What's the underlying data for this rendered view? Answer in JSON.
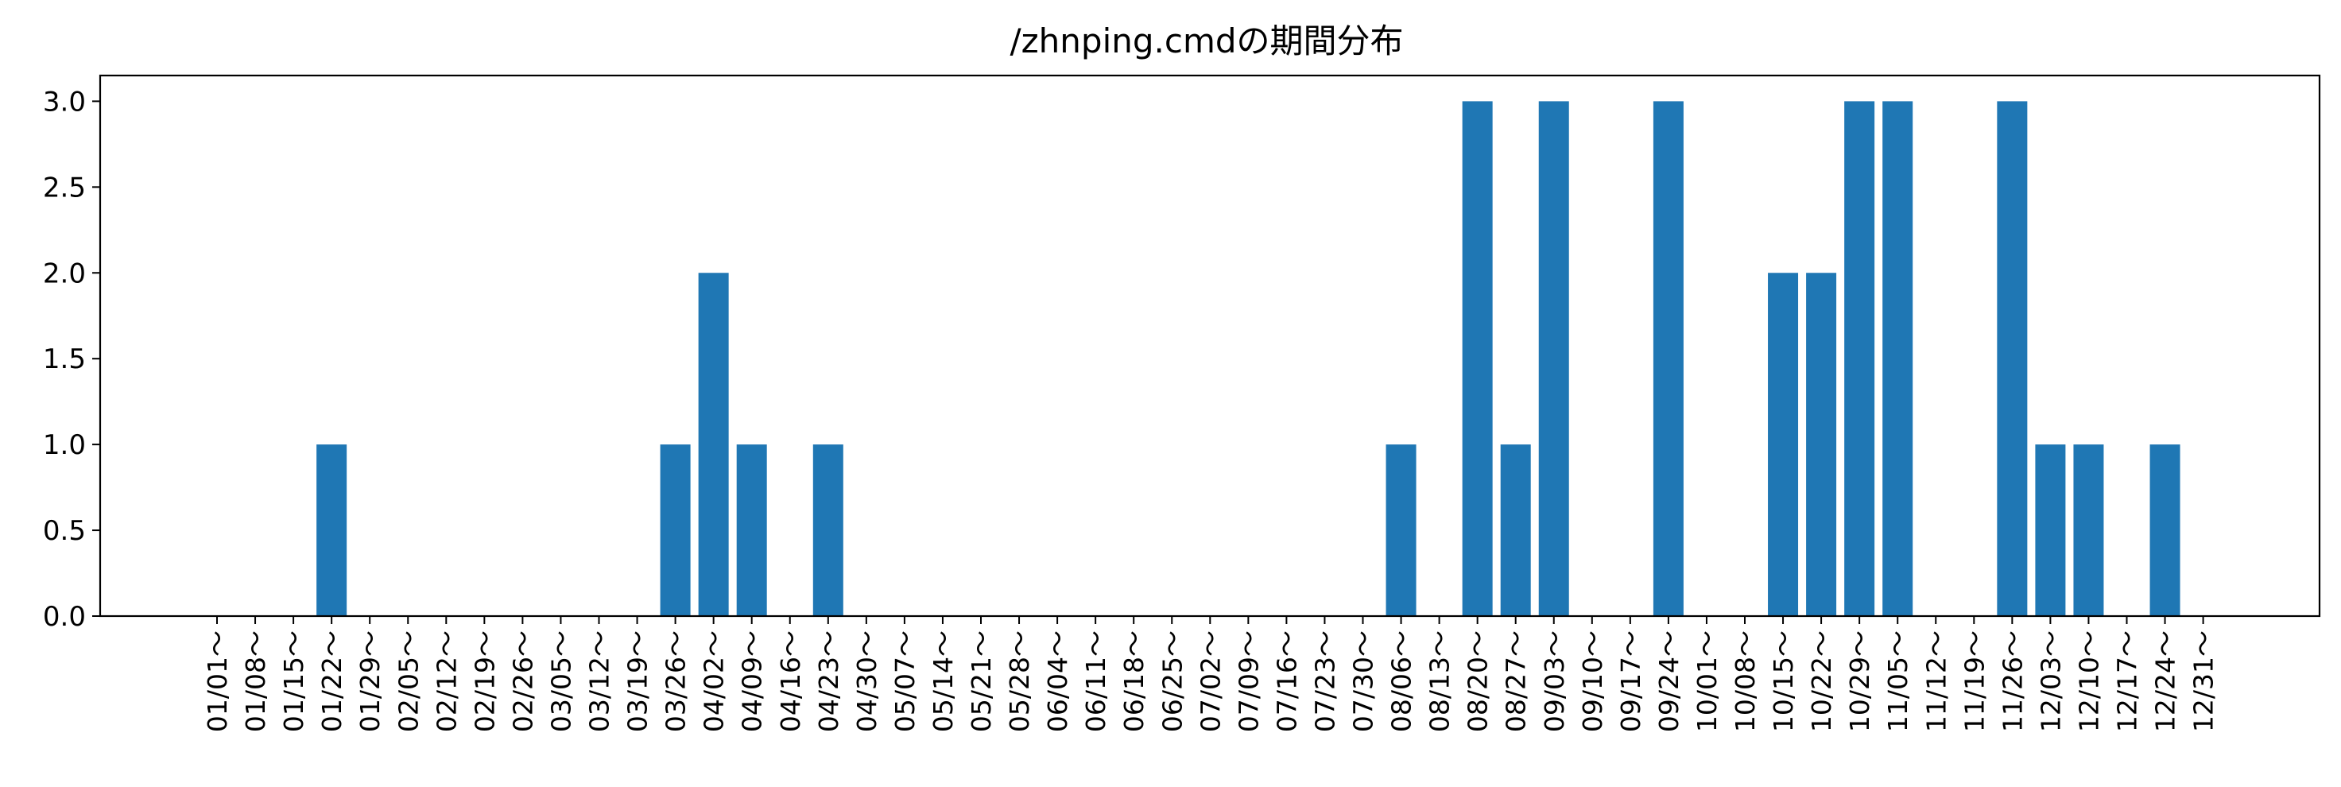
{
  "chart_data": {
    "type": "bar",
    "title": "/zhnping.cmdの期間分布",
    "xlabel": "",
    "ylabel": "",
    "ylim": [
      0,
      3.15
    ],
    "yticks": [
      "0.0",
      "0.5",
      "1.0",
      "1.5",
      "2.0",
      "2.5",
      "3.0"
    ],
    "grid": false,
    "bar_color": "#1f77b4",
    "categories": [
      "01/01～",
      "01/08～",
      "01/15～",
      "01/22～",
      "01/29～",
      "02/05～",
      "02/12～",
      "02/19～",
      "02/26～",
      "03/05～",
      "03/12～",
      "03/19～",
      "03/26～",
      "04/02～",
      "04/09～",
      "04/16～",
      "04/23～",
      "04/30～",
      "05/07～",
      "05/14～",
      "05/21～",
      "05/28～",
      "06/04～",
      "06/11～",
      "06/18～",
      "06/25～",
      "07/02～",
      "07/09～",
      "07/16～",
      "07/23～",
      "07/30～",
      "08/06～",
      "08/13～",
      "08/20～",
      "08/27～",
      "09/03～",
      "09/10～",
      "09/17～",
      "09/24～",
      "10/01～",
      "10/08～",
      "10/15～",
      "10/22～",
      "10/29～",
      "11/05～",
      "11/12～",
      "11/19～",
      "11/26～",
      "12/03～",
      "12/10～",
      "12/17～",
      "12/24～",
      "12/31～"
    ],
    "values": [
      0,
      0,
      0,
      1,
      0,
      0,
      0,
      0,
      0,
      0,
      0,
      0,
      1,
      2,
      1,
      0,
      1,
      0,
      0,
      0,
      0,
      0,
      0,
      0,
      0,
      0,
      0,
      0,
      0,
      0,
      0,
      1,
      0,
      3,
      1,
      3,
      0,
      0,
      3,
      0,
      0,
      2,
      2,
      3,
      3,
      0,
      0,
      3,
      1,
      1,
      0,
      1,
      0
    ]
  }
}
